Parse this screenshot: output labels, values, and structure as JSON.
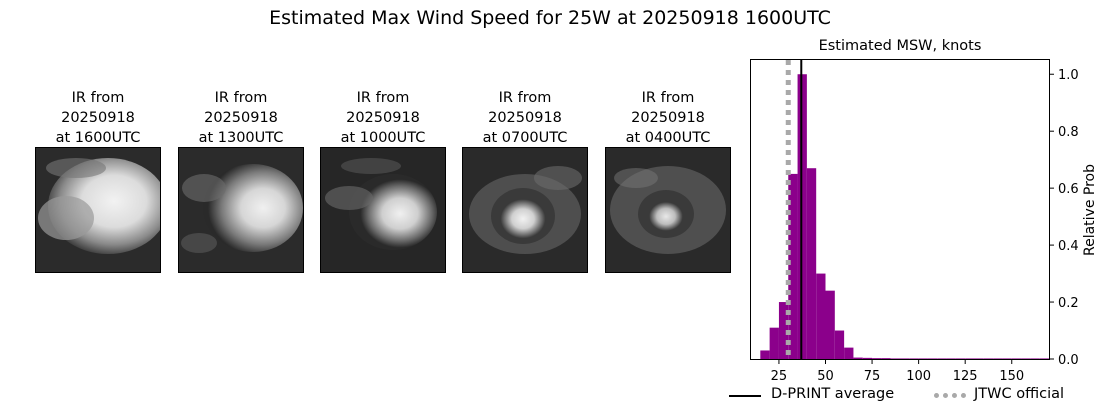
{
  "figure": {
    "title": "Estimated Max Wind Speed for 25W at 20250918 1600UTC"
  },
  "ir_panels": [
    {
      "line1": "IR from",
      "line2": "20250918",
      "line3": "at 1600UTC",
      "icon": "satellite-ir-image"
    },
    {
      "line1": "IR from",
      "line2": "20250918",
      "line3": "at 1300UTC",
      "icon": "satellite-ir-image"
    },
    {
      "line1": "IR from",
      "line2": "20250918",
      "line3": "at 1000UTC",
      "icon": "satellite-ir-image"
    },
    {
      "line1": "IR from",
      "line2": "20250918",
      "line3": "at 0700UTC",
      "icon": "satellite-ir-image"
    },
    {
      "line1": "IR from",
      "line2": "20250918",
      "line3": "at 0400UTC",
      "icon": "satellite-ir-image"
    }
  ],
  "chart_data": {
    "type": "bar",
    "title": "Estimated MSW, knots",
    "xlabel": "",
    "ylabel": "Relative Prob",
    "xlim": [
      10,
      170
    ],
    "ylim": [
      0,
      1.05
    ],
    "x_ticks": [
      25,
      50,
      75,
      100,
      125,
      150
    ],
    "y_ticks": [
      0.0,
      0.2,
      0.4,
      0.6,
      0.8,
      1.0
    ],
    "y_axis_side": "right",
    "bin_width": 5,
    "bins": [
      {
        "x": 15,
        "value": 0.03
      },
      {
        "x": 20,
        "value": 0.11
      },
      {
        "x": 25,
        "value": 0.2
      },
      {
        "x": 30,
        "value": 0.65
      },
      {
        "x": 35,
        "value": 1.0
      },
      {
        "x": 40,
        "value": 0.67
      },
      {
        "x": 45,
        "value": 0.3
      },
      {
        "x": 50,
        "value": 0.24
      },
      {
        "x": 55,
        "value": 0.1
      },
      {
        "x": 60,
        "value": 0.04
      },
      {
        "x": 65,
        "value": 0.005
      },
      {
        "x": 70,
        "value": 0.004
      },
      {
        "x": 75,
        "value": 0.003
      },
      {
        "x": 80,
        "value": 0.003
      },
      {
        "x": 85,
        "value": 0.002
      },
      {
        "x": 90,
        "value": 0.002
      },
      {
        "x": 95,
        "value": 0.002
      },
      {
        "x": 100,
        "value": 0.002
      },
      {
        "x": 105,
        "value": 0.002
      },
      {
        "x": 110,
        "value": 0.002
      },
      {
        "x": 115,
        "value": 0.002
      },
      {
        "x": 120,
        "value": 0.002
      },
      {
        "x": 125,
        "value": 0.002
      },
      {
        "x": 130,
        "value": 0.002
      },
      {
        "x": 135,
        "value": 0.002
      },
      {
        "x": 140,
        "value": 0.002
      },
      {
        "x": 145,
        "value": 0.002
      },
      {
        "x": 150,
        "value": 0.002
      },
      {
        "x": 155,
        "value": 0.002
      },
      {
        "x": 160,
        "value": 0.002
      },
      {
        "x": 165,
        "value": 0.002
      }
    ],
    "bar_color": "#8b008b",
    "reference_lines": [
      {
        "name": "D-PRINT average",
        "x": 37,
        "color": "#000000",
        "style": "solid"
      },
      {
        "name": "JTWC official",
        "x": 30,
        "color": "#a9a9a9",
        "style": "dotted"
      }
    ],
    "legend_placement": "bottom"
  }
}
